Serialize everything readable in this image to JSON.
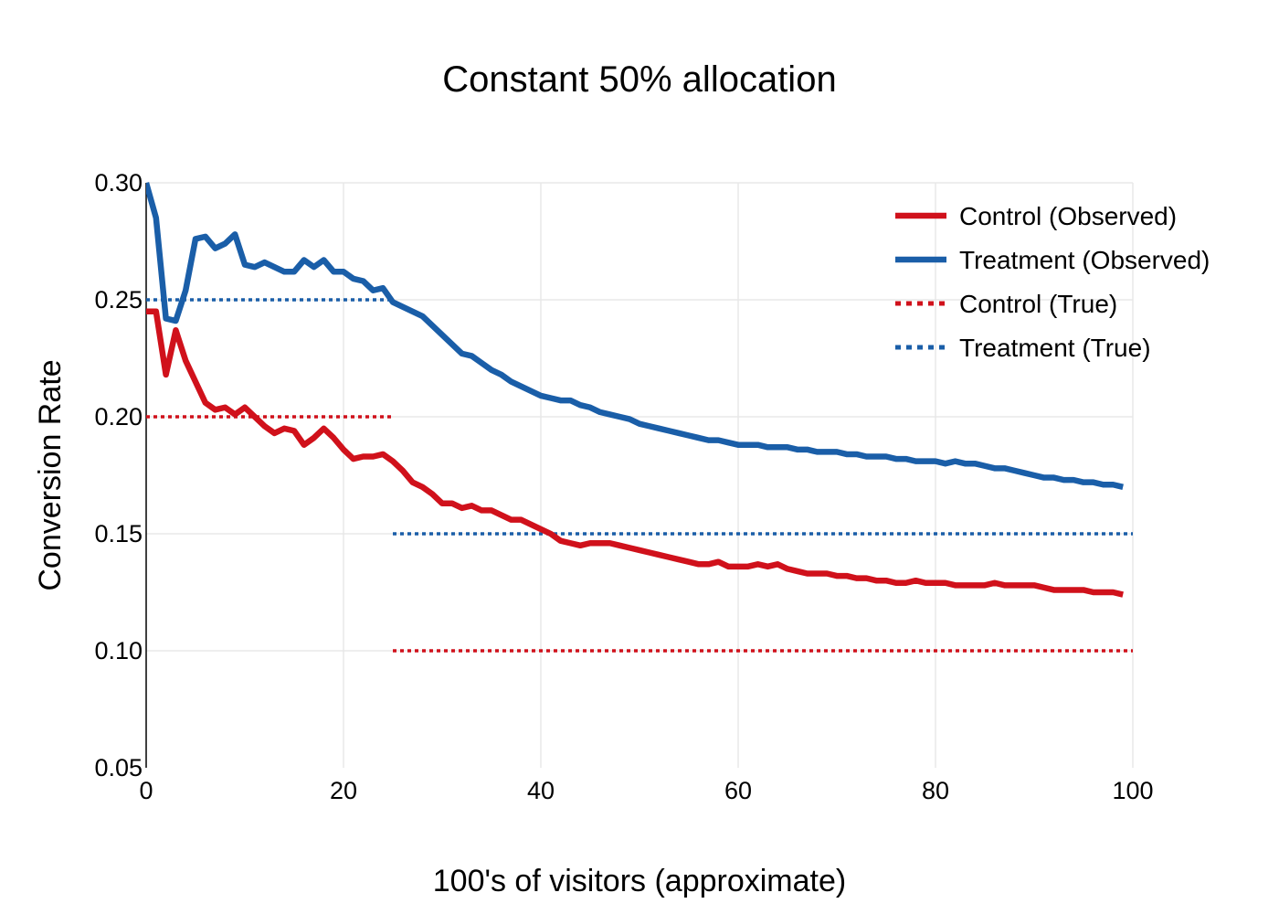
{
  "chart_data": {
    "type": "line",
    "title": "Constant 50% allocation",
    "xlabel": "100's of visitors (approximate)",
    "ylabel": "Conversion Rate",
    "xlim": [
      0,
      100
    ],
    "ylim": [
      0.05,
      0.3
    ],
    "x_ticks": [
      "0",
      "20",
      "40",
      "60",
      "80",
      "100"
    ],
    "x_tick_values": [
      0,
      20,
      40,
      60,
      80,
      100
    ],
    "y_ticks": [
      "0.05",
      "0.10",
      "0.15",
      "0.20",
      "0.25",
      "0.30"
    ],
    "y_tick_values": [
      0.05,
      0.1,
      0.15,
      0.2,
      0.25,
      0.3
    ],
    "grid": true,
    "legend_position": "top-right",
    "series": [
      {
        "name": "Control (Observed)",
        "style": "solid",
        "color": "#d0111b",
        "x": [
          0,
          1,
          2,
          3,
          4,
          5,
          6,
          7,
          8,
          9,
          10,
          11,
          12,
          13,
          14,
          15,
          16,
          17,
          18,
          19,
          20,
          21,
          22,
          23,
          24,
          25,
          26,
          27,
          28,
          29,
          30,
          31,
          32,
          33,
          34,
          35,
          36,
          37,
          38,
          39,
          40,
          41,
          42,
          43,
          44,
          45,
          46,
          47,
          48,
          49,
          50,
          51,
          52,
          53,
          54,
          55,
          56,
          57,
          58,
          59,
          60,
          61,
          62,
          63,
          64,
          65,
          66,
          67,
          68,
          69,
          70,
          71,
          72,
          73,
          74,
          75,
          76,
          77,
          78,
          79,
          80,
          81,
          82,
          83,
          84,
          85,
          86,
          87,
          88,
          89,
          90,
          91,
          92,
          93,
          94,
          95,
          96,
          97,
          98,
          99
        ],
        "y": [
          0.245,
          0.245,
          0.218,
          0.237,
          0.224,
          0.215,
          0.206,
          0.203,
          0.204,
          0.201,
          0.204,
          0.2,
          0.196,
          0.193,
          0.195,
          0.194,
          0.188,
          0.191,
          0.195,
          0.191,
          0.186,
          0.182,
          0.183,
          0.183,
          0.184,
          0.181,
          0.177,
          0.172,
          0.17,
          0.167,
          0.163,
          0.163,
          0.161,
          0.162,
          0.16,
          0.16,
          0.158,
          0.156,
          0.156,
          0.154,
          0.152,
          0.15,
          0.147,
          0.146,
          0.145,
          0.146,
          0.146,
          0.146,
          0.145,
          0.144,
          0.143,
          0.142,
          0.141,
          0.14,
          0.139,
          0.138,
          0.137,
          0.137,
          0.138,
          0.136,
          0.136,
          0.136,
          0.137,
          0.136,
          0.137,
          0.135,
          0.134,
          0.133,
          0.133,
          0.133,
          0.132,
          0.132,
          0.131,
          0.131,
          0.13,
          0.13,
          0.129,
          0.129,
          0.13,
          0.129,
          0.129,
          0.129,
          0.128,
          0.128,
          0.128,
          0.128,
          0.129,
          0.128,
          0.128,
          0.128,
          0.128,
          0.127,
          0.126,
          0.126,
          0.126,
          0.126,
          0.125,
          0.125,
          0.125,
          0.124
        ]
      },
      {
        "name": "Treatment (Observed)",
        "style": "solid",
        "color": "#1a5ea8",
        "x": [
          0,
          1,
          2,
          3,
          4,
          5,
          6,
          7,
          8,
          9,
          10,
          11,
          12,
          13,
          14,
          15,
          16,
          17,
          18,
          19,
          20,
          21,
          22,
          23,
          24,
          25,
          26,
          27,
          28,
          29,
          30,
          31,
          32,
          33,
          34,
          35,
          36,
          37,
          38,
          39,
          40,
          41,
          42,
          43,
          44,
          45,
          46,
          47,
          48,
          49,
          50,
          51,
          52,
          53,
          54,
          55,
          56,
          57,
          58,
          59,
          60,
          61,
          62,
          63,
          64,
          65,
          66,
          67,
          68,
          69,
          70,
          71,
          72,
          73,
          74,
          75,
          76,
          77,
          78,
          79,
          80,
          81,
          82,
          83,
          84,
          85,
          86,
          87,
          88,
          89,
          90,
          91,
          92,
          93,
          94,
          95,
          96,
          97,
          98,
          99
        ],
        "y": [
          0.3,
          0.285,
          0.242,
          0.241,
          0.254,
          0.276,
          0.277,
          0.272,
          0.274,
          0.278,
          0.265,
          0.264,
          0.266,
          0.264,
          0.262,
          0.262,
          0.267,
          0.264,
          0.267,
          0.262,
          0.262,
          0.259,
          0.258,
          0.254,
          0.255,
          0.249,
          0.247,
          0.245,
          0.243,
          0.239,
          0.235,
          0.231,
          0.227,
          0.226,
          0.223,
          0.22,
          0.218,
          0.215,
          0.213,
          0.211,
          0.209,
          0.208,
          0.207,
          0.207,
          0.205,
          0.204,
          0.202,
          0.201,
          0.2,
          0.199,
          0.197,
          0.196,
          0.195,
          0.194,
          0.193,
          0.192,
          0.191,
          0.19,
          0.19,
          0.189,
          0.188,
          0.188,
          0.188,
          0.187,
          0.187,
          0.187,
          0.186,
          0.186,
          0.185,
          0.185,
          0.185,
          0.184,
          0.184,
          0.183,
          0.183,
          0.183,
          0.182,
          0.182,
          0.181,
          0.181,
          0.181,
          0.18,
          0.181,
          0.18,
          0.18,
          0.179,
          0.178,
          0.178,
          0.177,
          0.176,
          0.175,
          0.174,
          0.174,
          0.173,
          0.173,
          0.172,
          0.172,
          0.171,
          0.171,
          0.17
        ]
      },
      {
        "name": "Control (True)",
        "style": "dotted",
        "color": "#d0111b",
        "segments": [
          {
            "x": [
              0,
              25
            ],
            "y": [
              0.2,
              0.2
            ]
          },
          {
            "x": [
              25,
              100
            ],
            "y": [
              0.1,
              0.1
            ]
          }
        ]
      },
      {
        "name": "Treatment (True)",
        "style": "dotted",
        "color": "#1a5ea8",
        "segments": [
          {
            "x": [
              0,
              25
            ],
            "y": [
              0.25,
              0.25
            ]
          },
          {
            "x": [
              25,
              100
            ],
            "y": [
              0.15,
              0.15
            ]
          }
        ]
      }
    ]
  }
}
